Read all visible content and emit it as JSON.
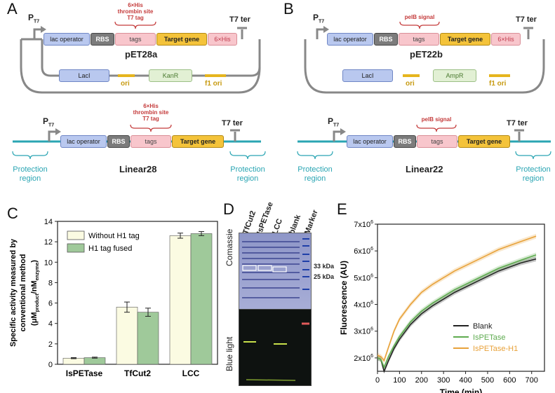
{
  "panels": {
    "a": "A",
    "b": "B",
    "c": "C",
    "d": "D",
    "e": "E"
  },
  "constructs": {
    "promoter": "P",
    "promoter_sub": "T7",
    "terminator": "T7 ter",
    "lac_operator": "lac operator",
    "rbs": "RBS",
    "tags": "tags",
    "target_gene": "Target gene",
    "his": "6×His",
    "lacI": "LacI",
    "ori": "ori",
    "f1ori": "f1 ori",
    "kanR": "KanR",
    "ampR": "AmpR",
    "pet28a": "pET28a",
    "pet22b": "pET22b",
    "linear28": "Linear28",
    "linear22": "Linear22",
    "a_tag_label_1": "6×His",
    "a_tag_label_2": "thrombin site",
    "a_tag_label_3": "T7 tag",
    "pelb": "pelB signal",
    "protection_1": "Protection",
    "protection_2": "region"
  },
  "colors": {
    "teal": "#2aa5b3",
    "light_bar": "#fbfbe2",
    "green_bar": "#9fc99a",
    "orange_line": "#e8a23a",
    "green_line": "#5eab4f",
    "black_line": "#222222"
  },
  "gel": {
    "lanes": [
      "TfCut2",
      "IsPETase",
      "LCC",
      "blank",
      "Marker"
    ],
    "top_label": "Comassie",
    "bottom_label": "Blue light",
    "kda_33": "33 kDa",
    "kda_25": "25 kDa"
  },
  "chart_data": [
    {
      "type": "bar",
      "ylabel_lines": [
        "Specific activity measured by",
        "conventional method"
      ],
      "yunit": "(μM",
      "yunit_sub1": "product",
      "yunit_mid": "/nM",
      "yunit_sub2": "enzyme",
      "yunit_end": ")",
      "categories": [
        "IsPETase",
        "TfCut2",
        "LCC"
      ],
      "series": [
        {
          "name": "Without H1 tag",
          "values": [
            0.6,
            5.6,
            12.6
          ],
          "errors": [
            0.05,
            0.5,
            0.25
          ]
        },
        {
          "name": "H1 tag fused",
          "values": [
            0.65,
            5.1,
            12.8
          ],
          "errors": [
            0.05,
            0.4,
            0.2
          ]
        }
      ],
      "ylim": [
        0,
        14
      ],
      "yticks": [
        0,
        2,
        4,
        6,
        8,
        10,
        12,
        14
      ]
    },
    {
      "type": "line",
      "xlabel": "Time (min)",
      "ylabel": "Fluorescence (AU)",
      "xlim": [
        0,
        720
      ],
      "xticks": [
        0,
        100,
        200,
        300,
        400,
        500,
        600,
        700
      ],
      "ylim": [
        1500000,
        7000000
      ],
      "yticks": [
        {
          "value": 2000000,
          "mant": "2x10",
          "exp": "6"
        },
        {
          "value": 3000000,
          "mant": "3x10",
          "exp": "6"
        },
        {
          "value": 4000000,
          "mant": "4x10",
          "exp": "6"
        },
        {
          "value": 5000000,
          "mant": "5x10",
          "exp": "6"
        },
        {
          "value": 6000000,
          "mant": "6x10",
          "exp": "6"
        },
        {
          "value": 7000000,
          "mant": "7x10",
          "exp": "6"
        }
      ],
      "x": [
        0,
        15,
        30,
        50,
        75,
        100,
        150,
        200,
        250,
        300,
        350,
        400,
        450,
        500,
        550,
        600,
        650,
        720
      ],
      "series": [
        {
          "name": "Blank",
          "color": "#222222",
          "values": [
            2000000,
            1950000,
            1500000,
            1900000,
            2350000,
            2700000,
            3250000,
            3650000,
            3950000,
            4200000,
            4450000,
            4650000,
            4850000,
            5050000,
            5250000,
            5400000,
            5550000,
            5700000
          ]
        },
        {
          "name": "IsPETase",
          "color": "#5eab4f",
          "values": [
            2000000,
            1950000,
            1650000,
            2050000,
            2450000,
            2800000,
            3350000,
            3750000,
            4050000,
            4300000,
            4550000,
            4750000,
            4950000,
            5150000,
            5350000,
            5500000,
            5650000,
            5850000
          ]
        },
        {
          "name": "IsPETase-H1",
          "color": "#e8a23a",
          "values": [
            2100000,
            2050000,
            1900000,
            2400000,
            3000000,
            3450000,
            4000000,
            4450000,
            4750000,
            5000000,
            5250000,
            5450000,
            5650000,
            5850000,
            6050000,
            6200000,
            6350000,
            6550000
          ]
        }
      ]
    }
  ]
}
